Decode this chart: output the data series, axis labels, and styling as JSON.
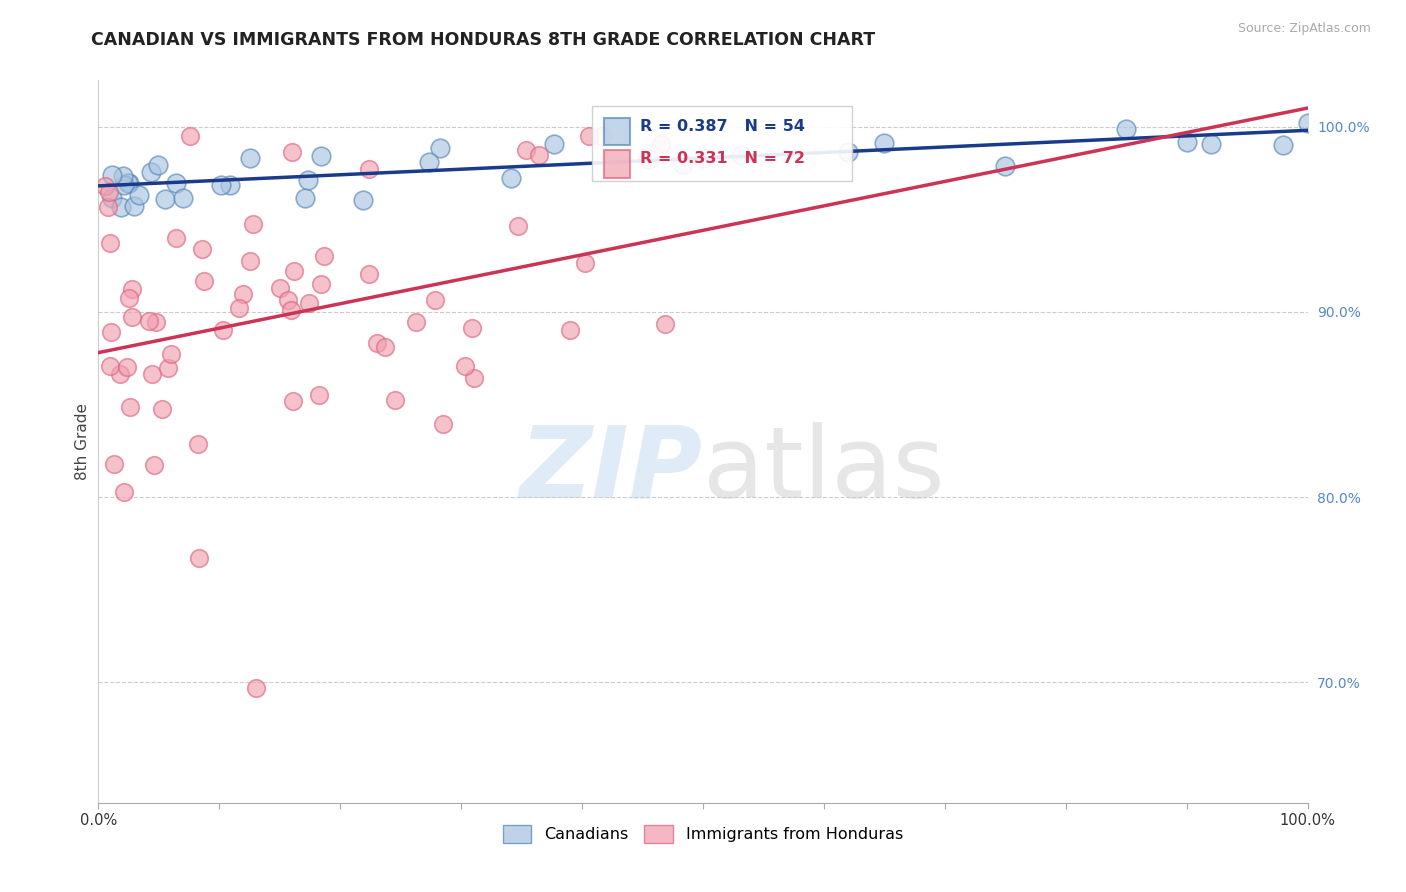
{
  "title": "CANADIAN VS IMMIGRANTS FROM HONDURAS 8TH GRADE CORRELATION CHART",
  "source": "Source: ZipAtlas.com",
  "ylabel": "8th Grade",
  "canadian_R": 0.387,
  "canadian_N": 54,
  "honduran_R": 0.331,
  "honduran_N": 72,
  "blue_fill": "#aac4e0",
  "blue_edge": "#5588bb",
  "pink_fill": "#f0a0b0",
  "pink_edge": "#dd6680",
  "blue_line_color": "#1a3a8a",
  "pink_line_color": "#cc3355",
  "right_tick_color": "#5588cc",
  "canadians_label": "Canadians",
  "hondurans_label": "Immigrants from Honduras",
  "y_ticks": [
    0.7,
    0.8,
    0.9,
    1.0
  ],
  "y_tick_labels": [
    "70.0%",
    "80.0%",
    "90.0%",
    "100.0%"
  ],
  "x_range": [
    0.0,
    1.0
  ],
  "y_range": [
    0.635,
    1.025
  ],
  "grid_color": "#cccccc",
  "blue_line_x0": 0.0,
  "blue_line_y0": 0.968,
  "blue_line_x1": 1.0,
  "blue_line_y1": 0.998,
  "pink_line_x0": 0.0,
  "pink_line_y0": 0.878,
  "pink_line_x1": 1.0,
  "pink_line_y1": 1.01
}
